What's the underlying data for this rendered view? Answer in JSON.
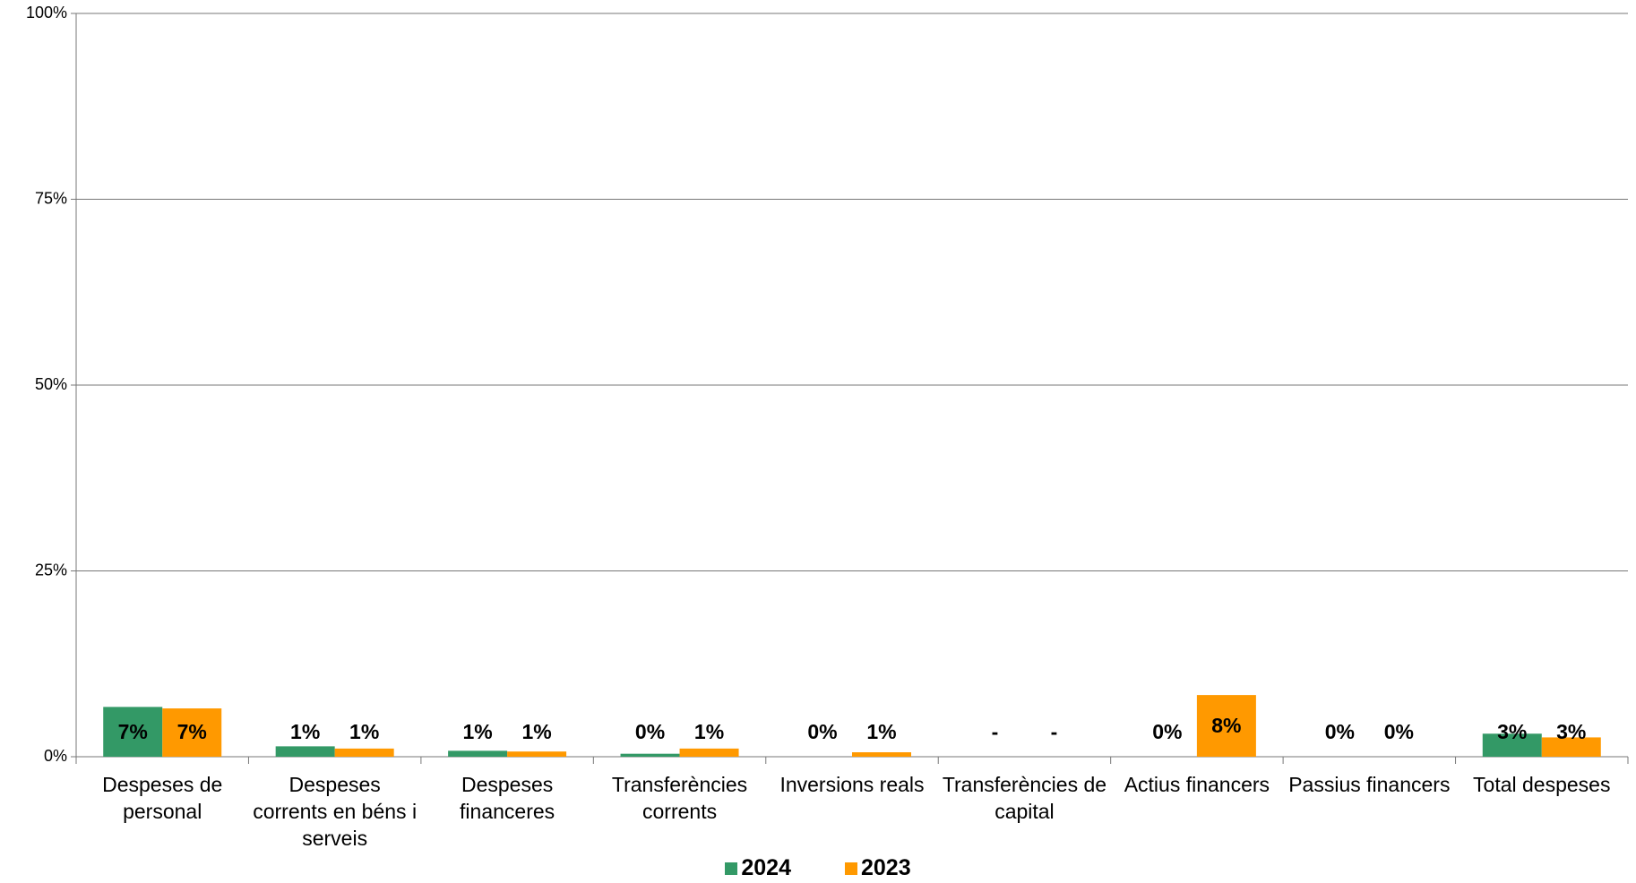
{
  "chart_data": {
    "type": "bar",
    "categories": [
      "Despeses de personal",
      "Despeses corrents en béns i serveis",
      "Despeses financeres",
      "Transferències corrents",
      "Inversions reals",
      "Transferències de capital",
      "Actius financers",
      "Passius financers",
      "Total despeses"
    ],
    "series": [
      {
        "name": "2024",
        "color": "#339966",
        "values": [
          6.7,
          1.4,
          0.8,
          0.4,
          0,
          null,
          0,
          0,
          3.1
        ],
        "value_labels": [
          "7%",
          "1%",
          "1%",
          "0%",
          "0%",
          "-",
          "0%",
          "0%",
          "3%"
        ]
      },
      {
        "name": "2023",
        "color": "#ff9900",
        "values": [
          6.5,
          1.1,
          0.7,
          1.1,
          0.6,
          null,
          8.3,
          0,
          2.6
        ],
        "value_labels": [
          "7%",
          "1%",
          "1%",
          "1%",
          "1%",
          "-",
          "8%",
          "0%",
          "3%"
        ]
      }
    ],
    "ylim": [
      0,
      100
    ],
    "yticks": [
      {
        "value": 0,
        "label": "0%"
      },
      {
        "value": 25,
        "label": "25%"
      },
      {
        "value": 50,
        "label": "50%"
      },
      {
        "value": 75,
        "label": "75%"
      },
      {
        "value": 100,
        "label": "100%"
      }
    ],
    "grid": true,
    "legend": "bottom"
  }
}
